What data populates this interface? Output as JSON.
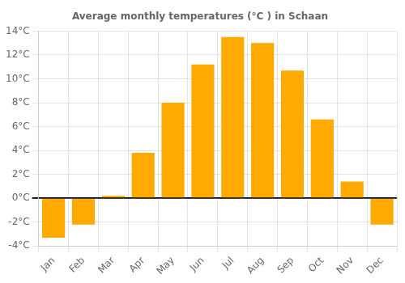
{
  "chart_data": {
    "type": "bar",
    "title": "Average monthly temperatures (°C ) in Schaan",
    "categories": [
      "Jan",
      "Feb",
      "Mar",
      "Apr",
      "May",
      "Jun",
      "Jul",
      "Aug",
      "Sep",
      "Oct",
      "Nov",
      "Dec"
    ],
    "values": [
      -3.3,
      -2.2,
      0.2,
      3.8,
      8.0,
      11.2,
      13.5,
      13.0,
      10.7,
      6.6,
      1.4,
      -2.2
    ],
    "color": "#FFAA00",
    "ylim": [
      -4,
      14
    ],
    "yticks": [
      {
        "value": -4,
        "label": "-4°C"
      },
      {
        "value": -2,
        "label": "-2°C"
      },
      {
        "value": 0,
        "label": "0°C"
      },
      {
        "value": 2,
        "label": "2°C"
      },
      {
        "value": 4,
        "label": "4°C"
      },
      {
        "value": 6,
        "label": "6°C"
      },
      {
        "value": 8,
        "label": "8°C"
      },
      {
        "value": 10,
        "label": "10°C"
      },
      {
        "value": 12,
        "label": "12°C"
      },
      {
        "value": 14,
        "label": "14°C"
      }
    ],
    "grid": true
  }
}
